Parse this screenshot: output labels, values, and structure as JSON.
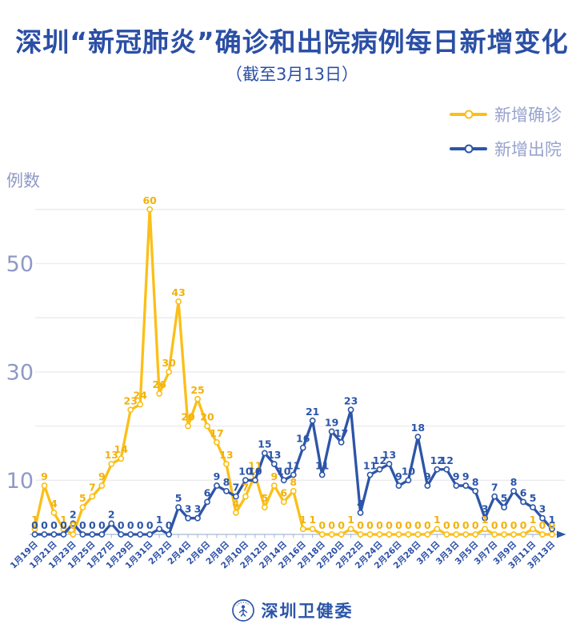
{
  "title": "深圳“新冠肺炎”确诊和出院病例每日新增变化",
  "subtitle": "（截至3月13日）",
  "y_axis_title": "例数",
  "legend": [
    {
      "label": "新增确诊",
      "color": "#FBBF17"
    },
    {
      "label": "新增出院",
      "color": "#2D55A8"
    }
  ],
  "footer": {
    "org_name": "深圳卫健委"
  },
  "colors": {
    "title_blue": "#2B4FA5",
    "grid": "#EAEAF0",
    "axis": "#A8B6D4",
    "axis_tick_text": "#8F99C7",
    "x_label_text": "#2A4FA6",
    "confirmed_line": "#FBBF17",
    "confirmed_label": "#F2B20D",
    "discharged_line": "#2D55A8",
    "discharged_label": "#2B55A8",
    "arrow": "#2B55A8"
  },
  "chart_data": {
    "type": "line",
    "title": "深圳“新冠肺炎”确诊和出院病例每日新增变化",
    "subtitle": "（截至3月13日）",
    "ylabel": "例数",
    "ylim": [
      0,
      62
    ],
    "yticks_labeled": [
      50,
      30,
      10
    ],
    "gridlines": [
      60,
      50,
      40,
      30,
      20,
      10
    ],
    "grid": "on",
    "legend_position": "top-right",
    "x_label_every": 2,
    "x": [
      "1月19日",
      "1月20日",
      "1月21日",
      "1月22日",
      "1月23日",
      "1月24日",
      "1月25日",
      "1月26日",
      "1月27日",
      "1月28日",
      "1月29日",
      "1月30日",
      "1月31日",
      "2月1日",
      "2月2日",
      "2月3日",
      "2月4日",
      "2月5日",
      "2月6日",
      "2月7日",
      "2月8日",
      "2月9日",
      "2月10日",
      "2月11日",
      "2月12日",
      "2月13日",
      "2月14日",
      "2月15日",
      "2月16日",
      "2月17日",
      "2月18日",
      "2月19日",
      "2月20日",
      "2月21日",
      "2月22日",
      "2月23日",
      "2月24日",
      "2月25日",
      "2月26日",
      "2月27日",
      "2月28日",
      "2月29日",
      "3月1日",
      "3月2日",
      "3月3日",
      "3月4日",
      "3月5日",
      "3月6日",
      "3月7日",
      "3月8日",
      "3月9日",
      "3月10日",
      "3月11日",
      "3月12日",
      "3月13日"
    ],
    "series": [
      {
        "name": "新增确诊",
        "color": "#FBBF17",
        "label_color": "#F2B20D",
        "values": [
          1,
          9,
          4,
          1,
          0,
          5,
          7,
          9,
          13,
          14,
          23,
          24,
          60,
          26,
          30,
          43,
          20,
          25,
          20,
          17,
          13,
          4,
          7,
          11,
          5,
          9,
          6,
          8,
          1,
          1,
          0,
          0,
          0,
          1,
          0,
          0,
          0,
          0,
          0,
          0,
          0,
          0,
          1,
          0,
          0,
          0,
          0,
          1,
          0,
          0,
          0,
          0,
          1,
          0,
          0
        ]
      },
      {
        "name": "新增出院",
        "color": "#2D55A8",
        "label_color": "#2B55A8",
        "values": [
          0,
          0,
          0,
          0,
          2,
          0,
          0,
          0,
          2,
          0,
          0,
          0,
          0,
          1,
          0,
          5,
          3,
          3,
          6,
          9,
          8,
          7,
          10,
          10,
          15,
          13,
          10,
          11,
          16,
          21,
          11,
          19,
          17,
          23,
          4,
          11,
          12,
          13,
          9,
          10,
          18,
          9,
          12,
          12,
          9,
          9,
          8,
          3,
          7,
          5,
          8,
          6,
          5,
          3,
          1
        ]
      }
    ]
  }
}
